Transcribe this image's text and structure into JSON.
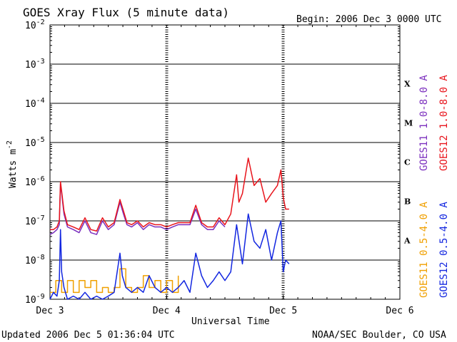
{
  "chart_data": {
    "type": "line",
    "title": "GOES Xray Flux (5 minute data)",
    "begin_label": "Begin:  2006 Dec 3 0000 UTC",
    "ylabel": "Watts m",
    "ylabel_sup": "-2",
    "xlabel": "Universal Time",
    "yscale": "log",
    "ylim": [
      1e-09,
      0.01
    ],
    "y_ticks": [
      {
        "value": 0.01,
        "base": "10",
        "exp": "-2"
      },
      {
        "value": 0.001,
        "base": "10",
        "exp": "-3"
      },
      {
        "value": 0.0001,
        "base": "10",
        "exp": "-4"
      },
      {
        "value": 1e-05,
        "base": "10",
        "exp": "-5"
      },
      {
        "value": 1e-06,
        "base": "10",
        "exp": "-6"
      },
      {
        "value": 1e-07,
        "base": "10",
        "exp": "-7"
      },
      {
        "value": 1e-08,
        "base": "10",
        "exp": "-8"
      },
      {
        "value": 1e-09,
        "base": "10",
        "exp": "-9"
      }
    ],
    "x_unit": "days since 2006 Dec 3 0000 UTC",
    "xlim": [
      0,
      3
    ],
    "x_ticks": [
      {
        "value": 0,
        "label": "Dec 3"
      },
      {
        "value": 1,
        "label": "Dec 4"
      },
      {
        "value": 2,
        "label": "Dec 5"
      },
      {
        "value": 3,
        "label": "Dec 6"
      }
    ],
    "flare_classes": [
      {
        "label": "X",
        "value": 0.000316
      },
      {
        "label": "M",
        "value": 3.16e-05
      },
      {
        "label": "C",
        "value": 3.16e-06
      },
      {
        "label": "B",
        "value": 3.16e-07
      },
      {
        "label": "A",
        "value": 3.16e-08
      }
    ],
    "series": [
      {
        "name": "GOES11 1.0-8.0 A",
        "color": "#7b2fbe",
        "style": "line",
        "x": [
          0,
          0.03,
          0.06,
          0.08,
          0.09,
          0.12,
          0.15,
          0.2,
          0.25,
          0.3,
          0.35,
          0.4,
          0.45,
          0.5,
          0.55,
          0.6,
          0.63,
          0.66,
          0.7,
          0.75,
          0.8,
          0.85,
          0.9,
          0.95,
          1.0,
          1.05,
          1.1,
          1.15,
          1.2,
          1.25,
          1.3,
          1.35,
          1.4,
          1.45,
          1.5
        ],
        "y": [
          4.5e-08,
          5e-08,
          6e-08,
          8e-08,
          9e-07,
          1.5e-07,
          7e-08,
          6e-08,
          5e-08,
          1e-07,
          5e-08,
          4.5e-08,
          1e-07,
          6e-08,
          8e-08,
          3e-07,
          1.5e-07,
          8e-08,
          7e-08,
          9e-08,
          6e-08,
          8e-08,
          7e-08,
          7e-08,
          6e-08,
          7e-08,
          8e-08,
          8e-08,
          8e-08,
          2e-07,
          8e-08,
          6e-08,
          6e-08,
          1e-07,
          7e-08
        ]
      },
      {
        "name": "GOES12 1.0-8.0 A",
        "color": "#e8141c",
        "style": "line",
        "x": [
          0,
          0.03,
          0.06,
          0.08,
          0.09,
          0.12,
          0.15,
          0.2,
          0.25,
          0.3,
          0.35,
          0.4,
          0.45,
          0.5,
          0.55,
          0.6,
          0.63,
          0.66,
          0.7,
          0.75,
          0.8,
          0.85,
          0.9,
          0.95,
          1.0,
          1.05,
          1.1,
          1.15,
          1.2,
          1.25,
          1.3,
          1.35,
          1.4,
          1.45,
          1.5,
          1.55,
          1.6,
          1.62,
          1.65,
          1.7,
          1.75,
          1.8,
          1.85,
          1.9,
          1.95,
          1.98,
          2.0,
          2.02,
          2.05
        ],
        "y": [
          6e-08,
          6e-08,
          7e-08,
          1e-07,
          1e-06,
          1.8e-07,
          8e-08,
          7e-08,
          6e-08,
          1.2e-07,
          6e-08,
          5.5e-08,
          1.2e-07,
          7e-08,
          9e-08,
          3.5e-07,
          1.8e-07,
          9e-08,
          8e-08,
          1e-07,
          7e-08,
          9e-08,
          8e-08,
          8e-08,
          7e-08,
          8e-08,
          9e-08,
          9e-08,
          9e-08,
          2.5e-07,
          9e-08,
          7e-08,
          7e-08,
          1.2e-07,
          8e-08,
          1.5e-07,
          1.5e-06,
          3e-07,
          5e-07,
          4e-06,
          8e-07,
          1.2e-06,
          3e-07,
          5e-07,
          8e-07,
          2e-06,
          4e-07,
          2e-07,
          2e-07
        ]
      },
      {
        "name": "GOES11 0.5-4.0 A",
        "color": "#f0a000",
        "style": "step",
        "x": [
          0,
          0.05,
          0.1,
          0.15,
          0.2,
          0.25,
          0.3,
          0.35,
          0.4,
          0.45,
          0.5,
          0.55,
          0.6,
          0.65,
          0.7,
          0.75,
          0.8,
          0.85,
          0.9,
          0.95,
          1.0,
          1.05,
          1.1
        ],
        "y": [
          1.5e-09,
          3e-09,
          1.5e-09,
          3e-09,
          1.5e-09,
          3e-09,
          2e-09,
          3e-09,
          1.5e-09,
          2e-09,
          1.5e-09,
          2e-09,
          6e-09,
          2e-09,
          1.5e-09,
          2e-09,
          4e-09,
          2e-09,
          3e-09,
          1.5e-09,
          3e-09,
          1.5e-09,
          4e-09
        ]
      },
      {
        "name": "GOES12 0.5-4.0 A",
        "color": "#1226e0",
        "style": "line",
        "x": [
          0,
          0.03,
          0.06,
          0.08,
          0.09,
          0.1,
          0.12,
          0.15,
          0.2,
          0.25,
          0.3,
          0.35,
          0.4,
          0.45,
          0.5,
          0.55,
          0.6,
          0.62,
          0.65,
          0.7,
          0.75,
          0.8,
          0.85,
          0.9,
          0.95,
          1.0,
          1.05,
          1.1,
          1.15,
          1.2,
          1.25,
          1.3,
          1.35,
          1.4,
          1.45,
          1.5,
          1.55,
          1.6,
          1.65,
          1.7,
          1.75,
          1.8,
          1.85,
          1.9,
          1.95,
          1.98,
          2.0,
          2.02,
          2.05
        ],
        "y": [
          1e-09,
          1.5e-09,
          1.2e-09,
          3e-09,
          6e-08,
          5e-09,
          2e-09,
          1e-09,
          1.2e-09,
          1e-09,
          1.5e-09,
          1e-09,
          1.2e-09,
          1e-09,
          1.2e-09,
          1.5e-09,
          1.5e-08,
          4e-09,
          2e-09,
          1.5e-09,
          2e-09,
          1.5e-09,
          4e-09,
          2e-09,
          1.5e-09,
          2e-09,
          1.5e-09,
          2e-09,
          3e-09,
          1.5e-09,
          1.5e-08,
          4e-09,
          2e-09,
          3e-09,
          5e-09,
          3e-09,
          5e-09,
          8e-08,
          8e-09,
          1.5e-07,
          3e-08,
          2e-08,
          6e-08,
          1e-08,
          5e-08,
          1e-07,
          5e-09,
          1e-08,
          8e-09
        ]
      }
    ],
    "legend_position": "right, vertical"
  },
  "footer": {
    "updated": "Updated 2006 Dec  5 01:36:04 UTC",
    "credit": "NOAA/SEC Boulder, CO USA"
  }
}
